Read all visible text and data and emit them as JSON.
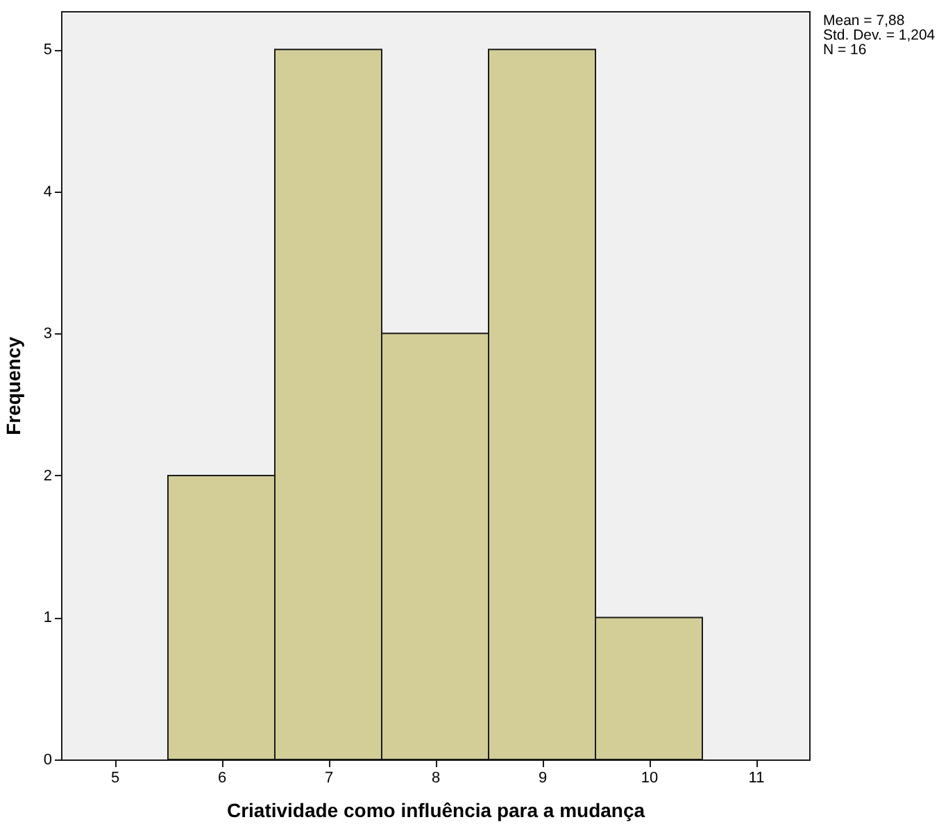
{
  "chart_data": {
    "type": "histogram",
    "xlabel": "Criatividade como influência para a mudança",
    "ylabel": "Frequency",
    "bins": [
      5.5,
      6.5,
      7.5,
      8.5,
      9.5,
      10.5
    ],
    "values": [
      2,
      5,
      3,
      5,
      1
    ],
    "color": "#d3ce98",
    "xlim": [
      4.5,
      11.5
    ],
    "xticks": [
      5,
      6,
      7,
      8,
      9,
      10,
      11
    ],
    "ylim": [
      0,
      5.27
    ],
    "yticks": [
      0,
      1,
      2,
      3,
      4,
      5
    ],
    "grid": false,
    "annotations": [
      "Mean = 7,88",
      "Std. Dev. = 1,204",
      "N = 16"
    ]
  }
}
